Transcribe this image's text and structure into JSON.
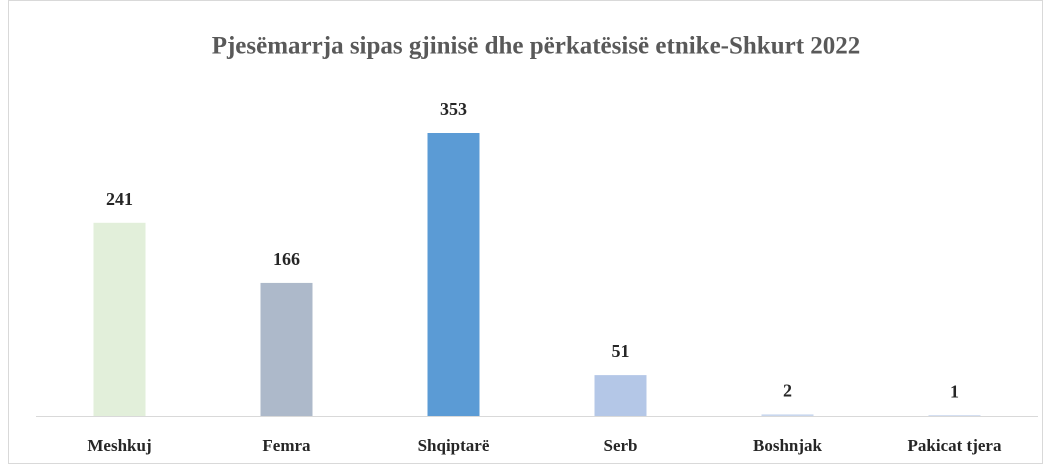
{
  "chart_data": {
    "type": "bar",
    "title": "Pjesëmarrja  sipas gjinisë dhe përkatësisë etnike-Shkurt 2022",
    "categories": [
      "Meshkuj",
      "Femra",
      "Shqiptarë",
      "Serb",
      "Boshnjak",
      "Pakicat tjera"
    ],
    "values": [
      241,
      166,
      353,
      51,
      2,
      1
    ],
    "colors": [
      "#e2efda",
      "#adb9ca",
      "#5b9bd5",
      "#b4c7e7",
      "#c9d7ee",
      "#c9d7ee"
    ]
  }
}
